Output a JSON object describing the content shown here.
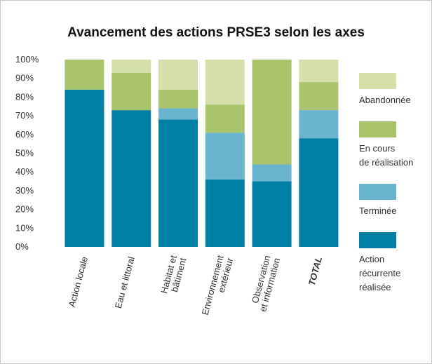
{
  "chart_data": {
    "type": "stacked_bar",
    "title": "Avancement des actions PRSE3 selon les axes",
    "categories": [
      [
        "Action locale"
      ],
      [
        "Eau et littoral"
      ],
      [
        "Habitat et",
        "bâtiment"
      ],
      [
        "Environnement",
        "extérieur"
      ],
      [
        "Observation",
        "et information"
      ],
      [
        "TOTAL"
      ]
    ],
    "series": [
      {
        "name": [
          "Action",
          "récurrente",
          "réalisée"
        ],
        "color": "#0080a4",
        "values": [
          84,
          73,
          68,
          36,
          35,
          58
        ]
      },
      {
        "name": [
          "Terminée"
        ],
        "color": "#6ab4d0",
        "values": [
          0,
          0,
          6,
          25,
          9,
          15
        ]
      },
      {
        "name": [
          "En cours",
          "de réalisation"
        ],
        "color": "#a9c46a",
        "values": [
          16,
          20,
          10,
          15,
          56,
          15
        ]
      },
      {
        "name": [
          "Abandonnée"
        ],
        "color": "#d4dfaa",
        "values": [
          0,
          7,
          16,
          24,
          0,
          12
        ]
      }
    ],
    "ylim": [
      0,
      100
    ],
    "yticks": [
      {
        "value": 0,
        "label": "0%"
      },
      {
        "value": 10,
        "label": "10%"
      },
      {
        "value": 20,
        "label": "20%"
      },
      {
        "value": 30,
        "label": "30%"
      },
      {
        "value": 40,
        "label": "40%"
      },
      {
        "value": 50,
        "label": "50%"
      },
      {
        "value": 60,
        "label": "60%"
      },
      {
        "value": 70,
        "label": "70%"
      },
      {
        "value": 80,
        "label": "80%"
      },
      {
        "value": 90,
        "label": "90%"
      },
      {
        "value": 100,
        "label": "100%"
      }
    ],
    "legend": "right"
  }
}
